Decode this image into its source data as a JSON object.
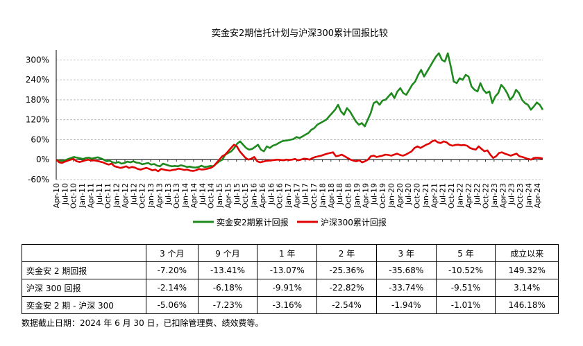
{
  "chart_data": {
    "type": "line",
    "title": "奕金安2期信托计划与沪深300累计回报比较",
    "y_unit": "%",
    "ylim": [
      -60,
      330
    ],
    "yticks": [
      "-60%",
      "0%",
      "60%",
      "120%",
      "180%",
      "240%",
      "300%"
    ],
    "ytick_values": [
      -60,
      0,
      60,
      120,
      180,
      240,
      300
    ],
    "grid": "horizontal",
    "legend_position": "bottom",
    "x_start": "2010-04",
    "x_end": "2024-06",
    "x_tick_labels": [
      "Apr-10",
      "Jul-10",
      "Oct-10",
      "Jan-11",
      "Apr-11",
      "Jul-11",
      "Oct-11",
      "Jan-12",
      "Apr-12",
      "Jul-12",
      "Oct-12",
      "Jan-13",
      "Apr-13",
      "Jul-13",
      "Oct-13",
      "Jan-14",
      "Apr-14",
      "Jul-14",
      "Oct-14",
      "Jan-15",
      "Apr-15",
      "Jul-15",
      "Oct-15",
      "Jan-16",
      "Apr-16",
      "Jul-16",
      "Oct-16",
      "Jan-17",
      "Apr-17",
      "Jul-17",
      "Oct-17",
      "Jan-18",
      "Apr-18",
      "Jul-18",
      "Oct-18",
      "Jan-19",
      "Apr-19",
      "Jul-19",
      "Oct-19",
      "Jan-20",
      "Apr-20",
      "Jul-20",
      "Oct-20",
      "Jan-21",
      "Apr-21",
      "Jul-21",
      "Oct-21",
      "Jan-22",
      "Apr-22",
      "Jul-22",
      "Oct-22",
      "Jan-23",
      "Apr-23",
      "Jul-23",
      "Oct-23",
      "Jan-24",
      "Apr-24"
    ],
    "series": [
      {
        "name": "奕金安2期累计回报",
        "color": "#1e8a1e",
        "values": [
          0,
          -3,
          -4,
          -2,
          2,
          5,
          8,
          6,
          4,
          2,
          5,
          6,
          3,
          5,
          7,
          4,
          0,
          -5,
          -3,
          -8,
          -10,
          -7,
          -12,
          -10,
          -6,
          -8,
          -5,
          -9,
          -10,
          -14,
          -12,
          -10,
          -15,
          -13,
          -18,
          -20,
          -12,
          -15,
          -18,
          -20,
          -19,
          -20,
          -17,
          -19,
          -22,
          -21,
          -23,
          -24,
          -22,
          -18,
          -22,
          -21,
          -19,
          -20,
          -12,
          -5,
          0,
          15,
          20,
          25,
          35,
          48,
          55,
          45,
          35,
          30,
          32,
          38,
          45,
          30,
          25,
          40,
          35,
          42,
          45,
          50,
          55,
          57,
          58,
          60,
          62,
          68,
          65,
          70,
          75,
          80,
          90,
          95,
          105,
          110,
          115,
          120,
          130,
          140,
          150,
          165,
          145,
          135,
          155,
          145,
          130,
          115,
          105,
          110,
          100,
          120,
          140,
          170,
          175,
          165,
          178,
          180,
          190,
          200,
          185,
          205,
          215,
          200,
          195,
          210,
          225,
          235,
          255,
          270,
          250,
          265,
          280,
          295,
          310,
          320,
          300,
          295,
          320,
          280,
          235,
          230,
          245,
          240,
          255,
          250,
          220,
          210,
          205,
          230,
          210,
          200,
          205,
          170,
          190,
          200,
          225,
          215,
          200,
          180,
          190,
          210,
          200,
          180,
          170,
          165,
          150,
          160,
          172,
          165,
          150
        ]
      },
      {
        "name": "沪深300累计回报",
        "color": "#e00000",
        "values": [
          0,
          -8,
          -10,
          -6,
          -3,
          0,
          2,
          -5,
          -7,
          -5,
          -2,
          0,
          -3,
          -2,
          -4,
          -6,
          -8,
          -12,
          -15,
          -12,
          -20,
          -22,
          -25,
          -23,
          -20,
          -25,
          -22,
          -24,
          -28,
          -30,
          -27,
          -25,
          -28,
          -32,
          -30,
          -35,
          -28,
          -30,
          -32,
          -33,
          -31,
          -30,
          -27,
          -29,
          -31,
          -30,
          -33,
          -34,
          -32,
          -28,
          -30,
          -29,
          -27,
          -25,
          -20,
          -10,
          0,
          10,
          15,
          25,
          35,
          45,
          40,
          25,
          15,
          5,
          0,
          3,
          8,
          -5,
          -8,
          -6,
          -4,
          -3,
          -2,
          -1,
          0,
          -1,
          -2,
          0,
          -1,
          0,
          2,
          -2,
          0,
          3,
          2,
          0,
          5,
          8,
          10,
          12,
          15,
          18,
          20,
          22,
          10,
          12,
          15,
          10,
          5,
          0,
          -3,
          -5,
          -2,
          -8,
          -5,
          0,
          10,
          12,
          8,
          10,
          12,
          15,
          14,
          12,
          15,
          18,
          14,
          12,
          15,
          20,
          25,
          35,
          40,
          35,
          40,
          45,
          48,
          55,
          58,
          52,
          50,
          55,
          52,
          45,
          42,
          44,
          45,
          43,
          44,
          42,
          35,
          32,
          30,
          40,
          32,
          25,
          28,
          15,
          5,
          10,
          20,
          22,
          18,
          15,
          12,
          15,
          18,
          10,
          8,
          5,
          2,
          0,
          5,
          6,
          5,
          3
        ]
      }
    ]
  },
  "table": {
    "headers": [
      "",
      "3 个月",
      "9 个月",
      "1 年",
      "2 年",
      "3 年",
      "5 年",
      "成立以来"
    ],
    "rows": [
      {
        "label": "奕金安 2 期回报",
        "values": [
          "-7.20%",
          "-13.41%",
          "-13.07%",
          "-25.36%",
          "-35.68%",
          "-10.52%",
          "149.32%"
        ]
      },
      {
        "label": "沪深 300 回报",
        "values": [
          "-2.14%",
          "-6.18%",
          "-9.91%",
          "-22.82%",
          "-33.74%",
          "-9.51%",
          "3.14%"
        ]
      },
      {
        "label": "奕金安 2 期 - 沪深 300",
        "values": [
          "-5.06%",
          "-7.23%",
          "-3.16%",
          "-2.54%",
          "-1.94%",
          "-1.01%",
          "146.18%"
        ]
      }
    ]
  },
  "note": "数据截止日期：2024 年 6 月 30 日，已扣除管理费、绩效费等。"
}
